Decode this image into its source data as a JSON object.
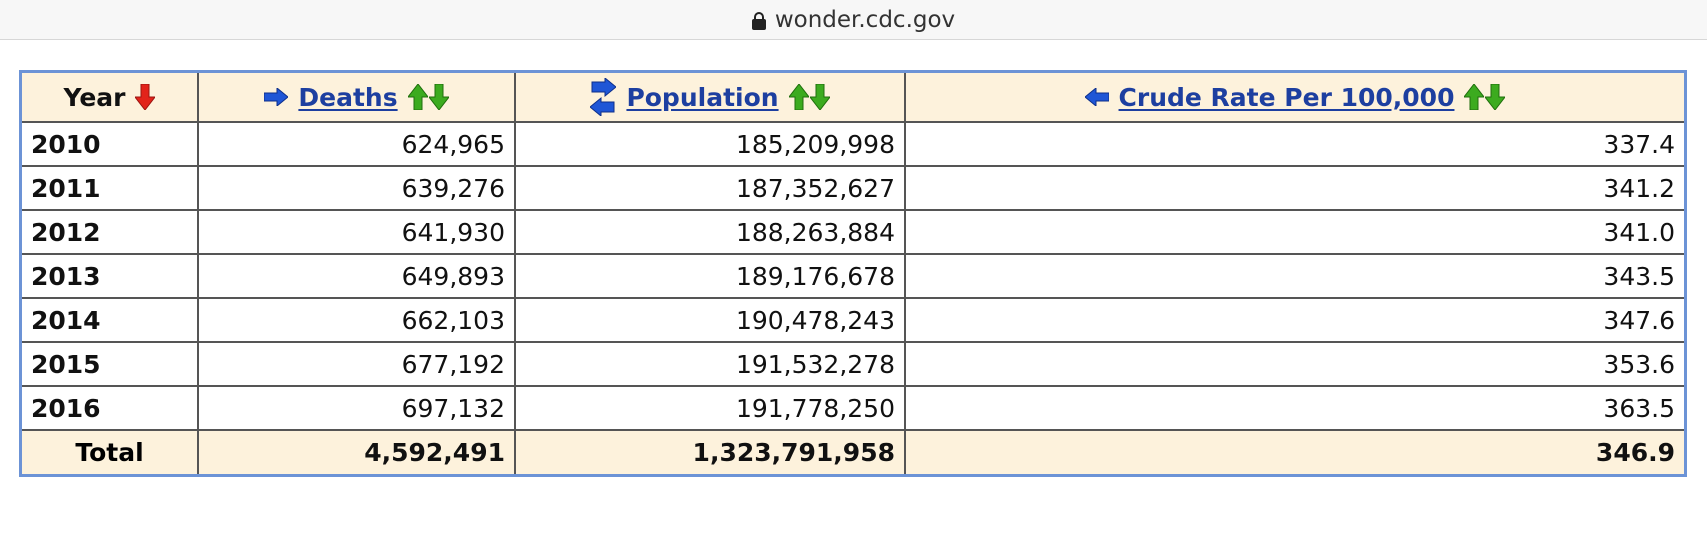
{
  "browser": {
    "url": "wonder.cdc.gov"
  },
  "colors": {
    "header_bg": "#fdf2dc",
    "border_accent": "#6c93d6",
    "link": "#1d3fa0",
    "sort_up": "#3cab1f",
    "sort_down": "#3cab1f",
    "sort_active": "#e2231a",
    "move_arrow": "#1f56d6"
  },
  "table": {
    "headers": {
      "year": "Year",
      "deaths": "Deaths",
      "population": "Population",
      "crude_rate": "Crude Rate Per 100,000"
    },
    "rows": [
      {
        "year": "2010",
        "deaths": "624,965",
        "population": "185,209,998",
        "crude_rate": "337.4"
      },
      {
        "year": "2011",
        "deaths": "639,276",
        "population": "187,352,627",
        "crude_rate": "341.2"
      },
      {
        "year": "2012",
        "deaths": "641,930",
        "population": "188,263,884",
        "crude_rate": "341.0"
      },
      {
        "year": "2013",
        "deaths": "649,893",
        "population": "189,176,678",
        "crude_rate": "343.5"
      },
      {
        "year": "2014",
        "deaths": "662,103",
        "population": "190,478,243",
        "crude_rate": "347.6"
      },
      {
        "year": "2015",
        "deaths": "677,192",
        "population": "191,532,278",
        "crude_rate": "353.6"
      },
      {
        "year": "2016",
        "deaths": "697,132",
        "population": "191,778,250",
        "crude_rate": "363.5"
      }
    ],
    "total": {
      "label": "Total",
      "deaths": "4,592,491",
      "population": "1,323,791,958",
      "crude_rate": "346.9"
    }
  }
}
